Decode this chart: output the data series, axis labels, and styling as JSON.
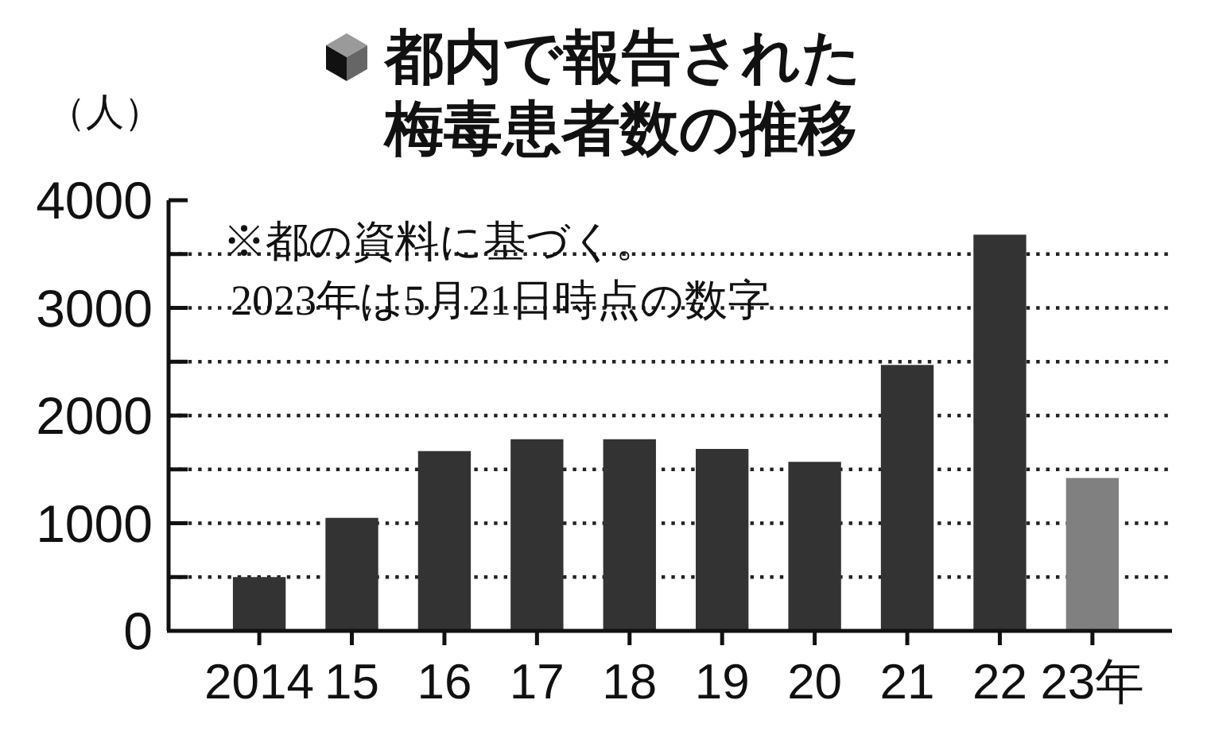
{
  "chart_data": {
    "type": "bar",
    "title": "都内で報告された梅毒患者数の推移",
    "ylabel": "（人）",
    "categories": [
      "2014",
      "15",
      "16",
      "17",
      "18",
      "19",
      "20",
      "21",
      "22",
      "23年"
    ],
    "values": [
      500,
      1050,
      1670,
      1780,
      1780,
      1690,
      1570,
      2470,
      3680,
      1420
    ],
    "colors": [
      "#333333",
      "#333333",
      "#333333",
      "#333333",
      "#333333",
      "#333333",
      "#333333",
      "#333333",
      "#333333",
      "#808080"
    ],
    "ylim": [
      0,
      4000
    ],
    "yticks": [
      0,
      {
        "value": 500,
        "label": null
      },
      1000,
      {
        "value": 1500,
        "label": null
      },
      2000,
      {
        "value": 2500,
        "label": null
      },
      3000,
      {
        "value": 3500,
        "label": null
      },
      4000
    ],
    "grid": "y",
    "annotations": [
      "※都の資料に基づく。",
      "2023年は5月21日時点の数字"
    ]
  }
}
